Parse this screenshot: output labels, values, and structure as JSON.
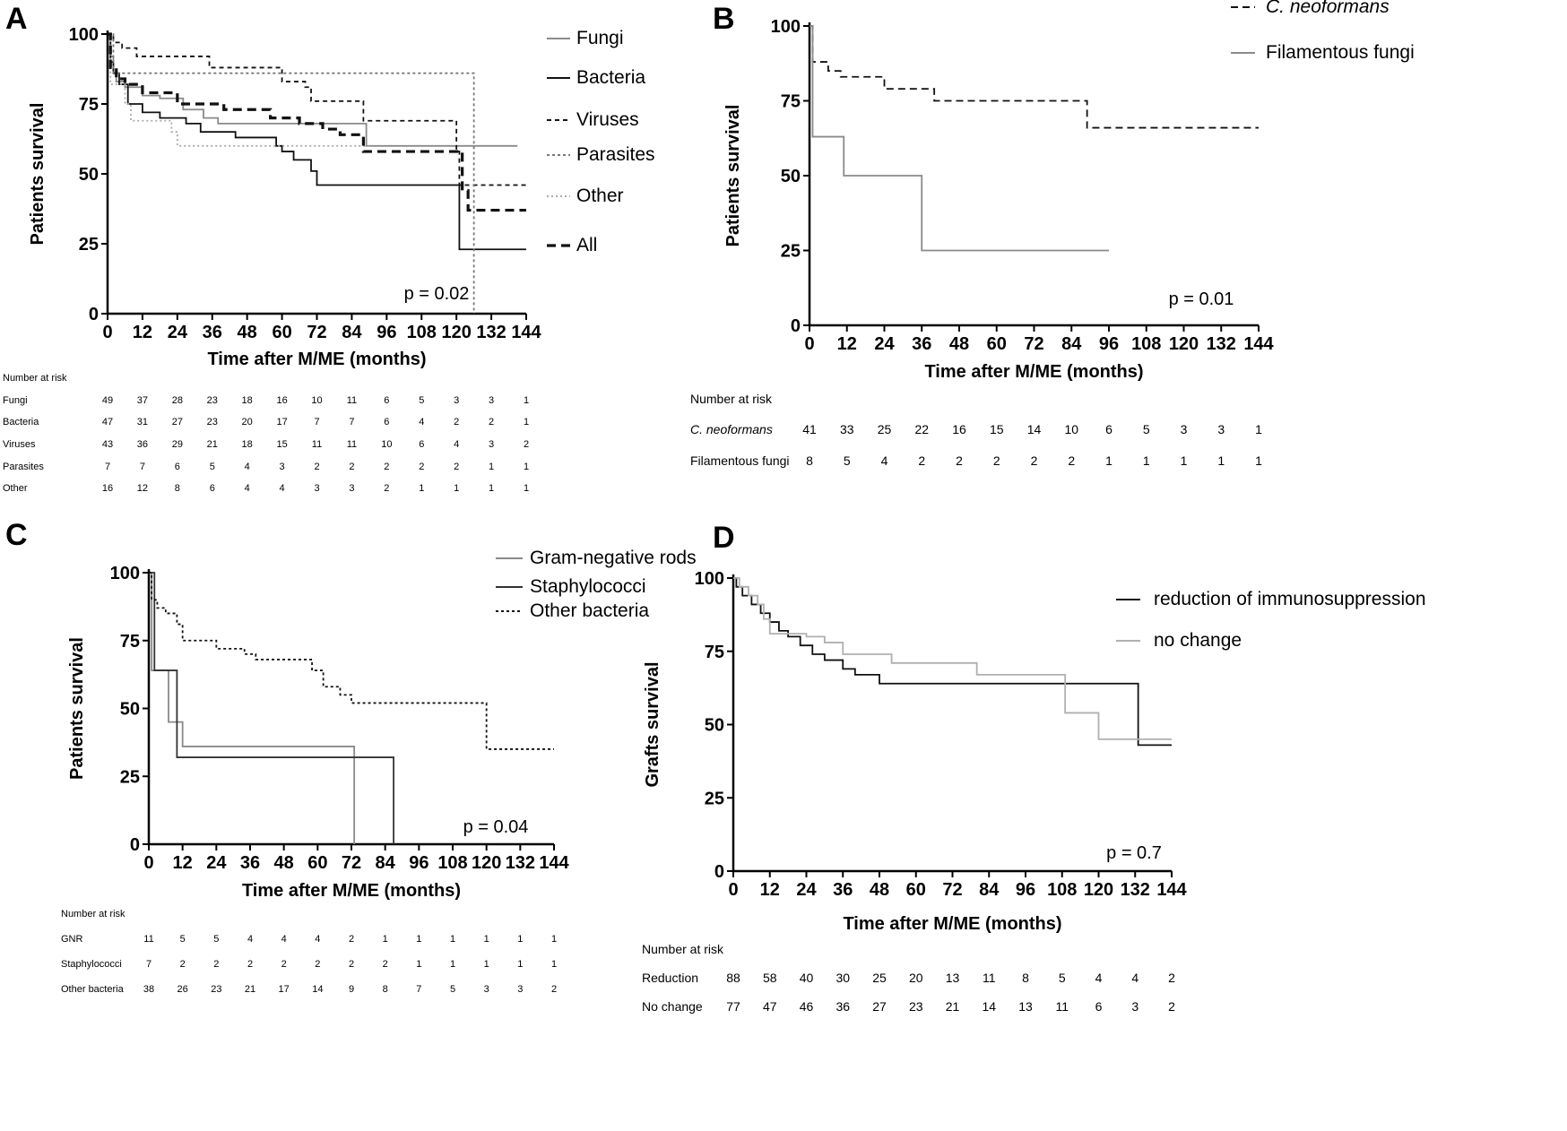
{
  "chart_data": [
    {
      "panel": "A",
      "type": "line",
      "step": true,
      "xlabel": "Time after M/ME (months)",
      "ylabel": "Patients survival",
      "xlim": [
        0,
        144
      ],
      "ylim": [
        0,
        100
      ],
      "xticks": [
        0,
        12,
        24,
        36,
        48,
        60,
        72,
        84,
        96,
        108,
        120,
        132,
        144
      ],
      "yticks": [
        0,
        25,
        50,
        75,
        100
      ],
      "p_value": "p = 0.02",
      "legend_position": "right",
      "series": [
        {
          "name": "Fungi",
          "color": "#8a8a8a",
          "dash": "solid",
          "points": [
            [
              0,
              100
            ],
            [
              1,
              92
            ],
            [
              2,
              86
            ],
            [
              3,
              83
            ],
            [
              6,
              81
            ],
            [
              12,
              78
            ],
            [
              18,
              77
            ],
            [
              26,
              73
            ],
            [
              33,
              70
            ],
            [
              38,
              68
            ],
            [
              88,
              68
            ],
            [
              89,
              60
            ],
            [
              141,
              60
            ]
          ]
        },
        {
          "name": "Bacteria",
          "color": "#111111",
          "dash": "solid",
          "points": [
            [
              0,
              100
            ],
            [
              1,
              90
            ],
            [
              2,
              86
            ],
            [
              4,
              82
            ],
            [
              7,
              75
            ],
            [
              12,
              72
            ],
            [
              18,
              70
            ],
            [
              27,
              68
            ],
            [
              32,
              65
            ],
            [
              44,
              63
            ],
            [
              58,
              60
            ],
            [
              60,
              58
            ],
            [
              64,
              55
            ],
            [
              70,
              51
            ],
            [
              72,
              46
            ],
            [
              120,
              46
            ],
            [
              121,
              23
            ],
            [
              144,
              23
            ]
          ]
        },
        {
          "name": "Viruses",
          "color": "#111111",
          "dash": "5,4",
          "points": [
            [
              0,
              100
            ],
            [
              2,
              97
            ],
            [
              5,
              95
            ],
            [
              10,
              92
            ],
            [
              35,
              88
            ],
            [
              60,
              83
            ],
            [
              68,
              81
            ],
            [
              70,
              76
            ],
            [
              88,
              69
            ],
            [
              116,
              69
            ],
            [
              120,
              58
            ],
            [
              121,
              46
            ],
            [
              144,
              46
            ]
          ]
        },
        {
          "name": "Parasites",
          "color": "#777777",
          "dash": "3,3",
          "points": [
            [
              0,
              100
            ],
            [
              2,
              86
            ],
            [
              125,
              86
            ],
            [
              126,
              0
            ]
          ]
        },
        {
          "name": "Other",
          "color": "#aaaaaa",
          "dash": "2,3",
          "points": [
            [
              0,
              100
            ],
            [
              1,
              82
            ],
            [
              6,
              75
            ],
            [
              8,
              69
            ],
            [
              22,
              65
            ],
            [
              24,
              60
            ],
            [
              60,
              60
            ],
            [
              61,
              60
            ],
            [
              90,
              60
            ]
          ]
        },
        {
          "name": "All",
          "color": "#111111",
          "dash": "10,6",
          "bold": true,
          "points": [
            [
              0,
              100
            ],
            [
              1,
              88
            ],
            [
              3,
              84
            ],
            [
              6,
              82
            ],
            [
              12,
              79
            ],
            [
              20,
              79
            ],
            [
              24,
              75
            ],
            [
              40,
              73
            ],
            [
              56,
              70
            ],
            [
              66,
              68
            ],
            [
              74,
              66
            ],
            [
              80,
              64
            ],
            [
              88,
              64
            ],
            [
              88,
              58
            ],
            [
              120,
              58
            ],
            [
              122,
              44
            ],
            [
              124,
              37
            ],
            [
              144,
              37
            ]
          ]
        }
      ],
      "risk_table": {
        "title": "Number at risk",
        "rows": [
          {
            "label": "Fungi",
            "values": [
              "49",
              "37",
              "28",
              "23",
              "18",
              "16",
              "10",
              "11",
              "6",
              "5",
              "3",
              "3",
              "1"
            ]
          },
          {
            "label": "Bacteria",
            "values": [
              "47",
              "31",
              "27",
              "23",
              "20",
              "17",
              "7",
              "7",
              "6",
              "4",
              "2",
              "2",
              "1"
            ]
          },
          {
            "label": "Viruses",
            "values": [
              "43",
              "36",
              "29",
              "21",
              "18",
              "15",
              "11",
              "11",
              "10",
              "6",
              "4",
              "3",
              "2"
            ]
          },
          {
            "label": "Parasites",
            "values": [
              "7",
              "7",
              "6",
              "5",
              "4",
              "3",
              "2",
              "2",
              "2",
              "2",
              "2",
              "1",
              "1"
            ]
          },
          {
            "label": "Other",
            "values": [
              "16",
              "12",
              "8",
              "6",
              "4",
              "4",
              "3",
              "3",
              "2",
              "1",
              "1",
              "1",
              "1"
            ]
          }
        ]
      }
    },
    {
      "panel": "B",
      "type": "line",
      "step": true,
      "xlabel": "Time after M/ME (months)",
      "ylabel": "Patients survival",
      "xlim": [
        0,
        144
      ],
      "ylim": [
        0,
        100
      ],
      "xticks": [
        0,
        12,
        24,
        36,
        48,
        60,
        72,
        84,
        96,
        108,
        120,
        132,
        144
      ],
      "yticks": [
        0,
        25,
        50,
        75,
        100
      ],
      "p_value": "p = 0.01",
      "legend_position": "top-right",
      "series": [
        {
          "name": "C. neoformans",
          "italic": true,
          "color": "#111111",
          "dash": "8,5",
          "points": [
            [
              0,
              100
            ],
            [
              1,
              88
            ],
            [
              6,
              85
            ],
            [
              10,
              83
            ],
            [
              24,
              79
            ],
            [
              40,
              75
            ],
            [
              88,
              75
            ],
            [
              89,
              66
            ],
            [
              144,
              66
            ]
          ]
        },
        {
          "name": "Filamentous fungi",
          "color": "#8a8a8a",
          "dash": "solid",
          "points": [
            [
              0,
              100
            ],
            [
              1,
              63
            ],
            [
              10,
              63
            ],
            [
              11,
              50
            ],
            [
              35,
              50
            ],
            [
              36,
              25
            ],
            [
              96,
              25
            ]
          ]
        }
      ],
      "risk_table": {
        "title": "Number at risk",
        "rows": [
          {
            "label": "C. neoformans",
            "italic": true,
            "values": [
              "41",
              "33",
              "25",
              "22",
              "16",
              "15",
              "14",
              "10",
              "6",
              "5",
              "3",
              "3",
              "1"
            ]
          },
          {
            "label": "Filamentous fungi",
            "values": [
              "8",
              "5",
              "4",
              "2",
              "2",
              "2",
              "2",
              "2",
              "1",
              "1",
              "1",
              "1",
              "1"
            ]
          }
        ]
      }
    },
    {
      "panel": "C",
      "type": "line",
      "step": true,
      "xlabel": "Time after M/ME (months)",
      "ylabel": "Patients survival",
      "xlim": [
        0,
        144
      ],
      "ylim": [
        0,
        100
      ],
      "xticks": [
        0,
        12,
        24,
        36,
        48,
        60,
        72,
        84,
        96,
        108,
        120,
        132,
        144
      ],
      "yticks": [
        0,
        25,
        50,
        75,
        100
      ],
      "p_value": "p = 0.04",
      "legend_position": "top-right",
      "series": [
        {
          "name": "Gram-negative rods",
          "color": "#8a8a8a",
          "dash": "solid",
          "points": [
            [
              0,
              100
            ],
            [
              1,
              64
            ],
            [
              6,
              64
            ],
            [
              7,
              45
            ],
            [
              11,
              45
            ],
            [
              12,
              36
            ],
            [
              72,
              36
            ],
            [
              73,
              0
            ]
          ]
        },
        {
          "name": "Staphylococci",
          "color": "#333333",
          "dash": "solid",
          "points": [
            [
              0,
              100
            ],
            [
              2,
              64
            ],
            [
              8,
              64
            ],
            [
              10,
              32
            ],
            [
              86,
              32
            ],
            [
              87,
              0
            ]
          ]
        },
        {
          "name": "Other bacteria",
          "color": "#111111",
          "dash": "3,3",
          "points": [
            [
              0,
              100
            ],
            [
              1,
              90
            ],
            [
              3,
              87
            ],
            [
              6,
              85
            ],
            [
              10,
              81
            ],
            [
              12,
              75
            ],
            [
              22,
              75
            ],
            [
              24,
              72
            ],
            [
              34,
              70
            ],
            [
              38,
              68
            ],
            [
              56,
              68
            ],
            [
              58,
              64
            ],
            [
              62,
              58
            ],
            [
              68,
              55
            ],
            [
              72,
              52
            ],
            [
              118,
              52
            ],
            [
              120,
              35
            ],
            [
              144,
              35
            ]
          ]
        }
      ],
      "risk_table": {
        "title": "Number at risk",
        "rows": [
          {
            "label": "GNR",
            "values": [
              "11",
              "5",
              "5",
              "4",
              "4",
              "4",
              "2",
              "1",
              "1",
              "1",
              "1",
              "1",
              "1"
            ]
          },
          {
            "label": "Staphylococci",
            "values": [
              "7",
              "2",
              "2",
              "2",
              "2",
              "2",
              "2",
              "2",
              "1",
              "1",
              "1",
              "1",
              "1"
            ]
          },
          {
            "label": "Other bacteria",
            "values": [
              "38",
              "26",
              "23",
              "21",
              "17",
              "14",
              "9",
              "8",
              "7",
              "5",
              "3",
              "3",
              "2"
            ]
          }
        ]
      }
    },
    {
      "panel": "D",
      "type": "line",
      "step": true,
      "xlabel": "Time after M/ME (months)",
      "ylabel": "Grafts survival",
      "xlim": [
        0,
        144
      ],
      "ylim": [
        0,
        100
      ],
      "xticks": [
        0,
        12,
        24,
        36,
        48,
        60,
        72,
        84,
        96,
        108,
        120,
        132,
        144
      ],
      "yticks": [
        0,
        25,
        50,
        75,
        100
      ],
      "p_value": "p = 0.7",
      "legend_position": "top-right",
      "series": [
        {
          "name": "reduction of immunosuppression",
          "color": "#111111",
          "dash": "solid",
          "points": [
            [
              0,
              100
            ],
            [
              1,
              97
            ],
            [
              3,
              94
            ],
            [
              6,
              91
            ],
            [
              9,
              88
            ],
            [
              12,
              85
            ],
            [
              15,
              82
            ],
            [
              18,
              80
            ],
            [
              22,
              77
            ],
            [
              26,
              74
            ],
            [
              30,
              72
            ],
            [
              36,
              69
            ],
            [
              40,
              67
            ],
            [
              48,
              64
            ],
            [
              132,
              64
            ],
            [
              133,
              43
            ],
            [
              144,
              43
            ]
          ]
        },
        {
          "name": "no change",
          "color": "#b0b0b0",
          "dash": "solid",
          "points": [
            [
              0,
              100
            ],
            [
              2,
              97
            ],
            [
              5,
              94
            ],
            [
              8,
              91
            ],
            [
              10,
              86
            ],
            [
              12,
              81
            ],
            [
              20,
              81
            ],
            [
              24,
              80
            ],
            [
              30,
              78
            ],
            [
              36,
              74
            ],
            [
              52,
              71
            ],
            [
              80,
              67
            ],
            [
              108,
              67
            ],
            [
              109,
              54
            ],
            [
              118,
              54
            ],
            [
              120,
              45
            ],
            [
              144,
              45
            ]
          ]
        }
      ],
      "risk_table": {
        "title": "Number at risk",
        "rows": [
          {
            "label": "Reduction",
            "values": [
              "88",
              "58",
              "40",
              "30",
              "25",
              "20",
              "13",
              "11",
              "8",
              "5",
              "4",
              "4",
              "2"
            ]
          },
          {
            "label": "No change",
            "values": [
              "77",
              "47",
              "46",
              "36",
              "27",
              "23",
              "21",
              "14",
              "13",
              "11",
              "6",
              "3",
              "2"
            ]
          }
        ]
      }
    }
  ]
}
